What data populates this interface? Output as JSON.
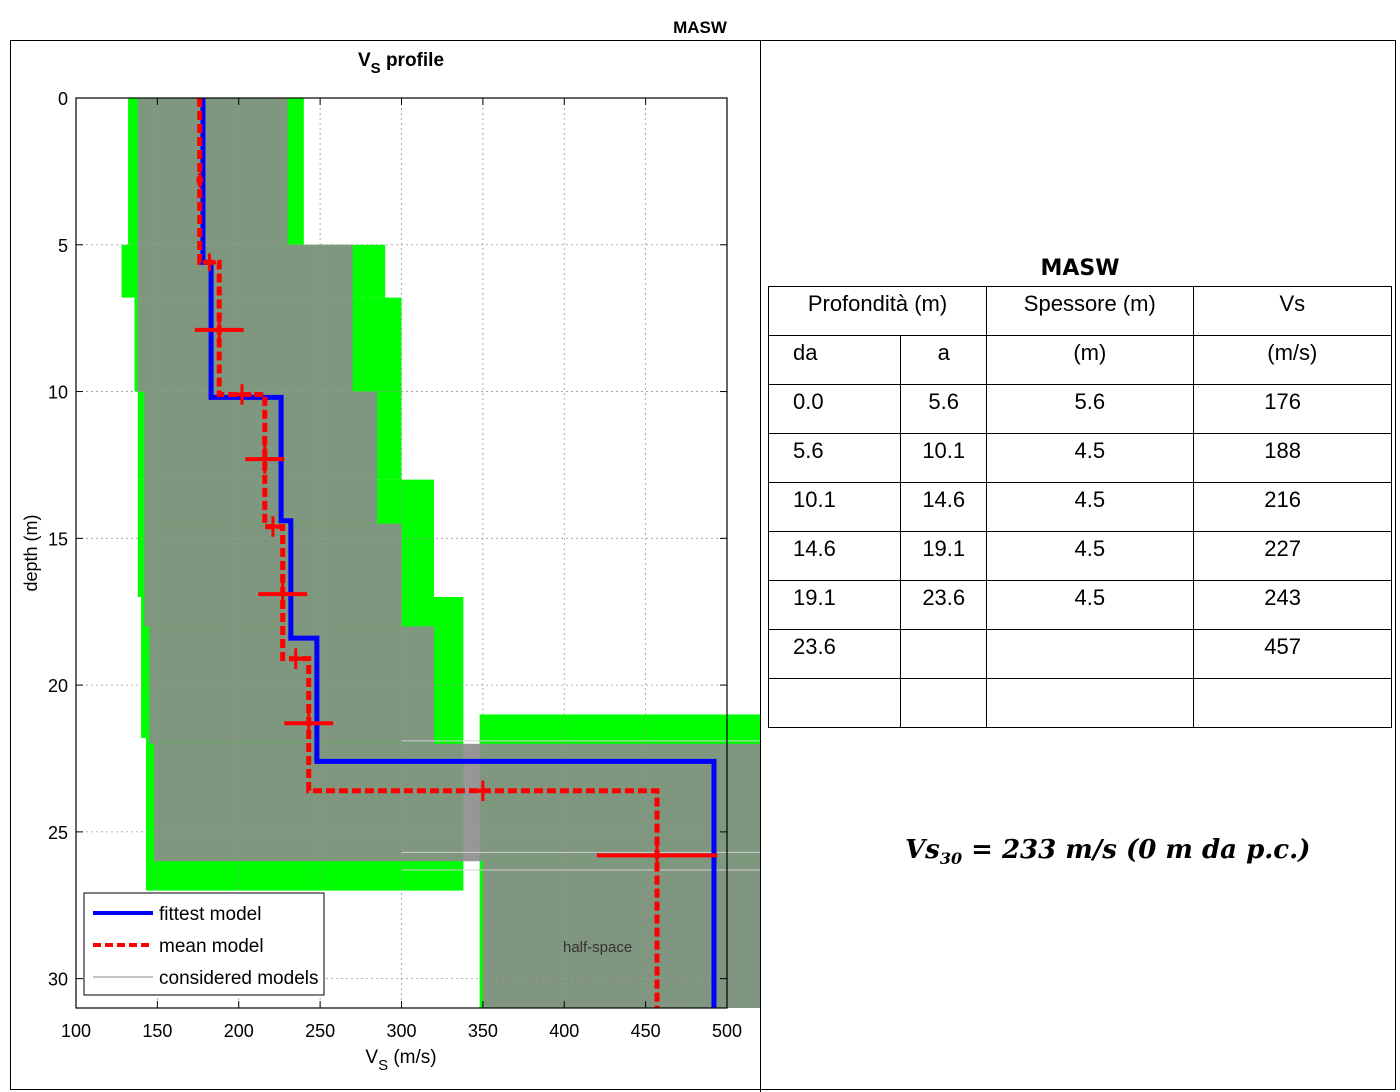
{
  "page": {
    "title": "MASW"
  },
  "chart_data": {
    "type": "line",
    "title": "V",
    "title_sub": "S",
    "title_rest": " profile",
    "xlabel": "V",
    "xlabel_sub": "S",
    "xlabel_rest": " (m/s)",
    "ylabel": "depth (m)",
    "xlim": [
      100,
      500
    ],
    "ylim": [
      0,
      31
    ],
    "y_inverted": true,
    "grid": true,
    "x_ticks": [
      "100",
      "150",
      "200",
      "250",
      "300",
      "350",
      "400",
      "450",
      "500"
    ],
    "y_ticks": [
      "0",
      "5",
      "10",
      "15",
      "20",
      "25",
      "30"
    ],
    "series": [
      {
        "name": "fittest model",
        "color": "#0000ff",
        "style": "solid",
        "x": [
          178,
          178,
          183,
          183,
          226,
          226,
          232,
          232,
          248,
          248,
          492,
          492
        ],
        "y": [
          0,
          5.6,
          5.6,
          10.2,
          10.2,
          14.4,
          14.4,
          18.4,
          18.4,
          22.6,
          22.6,
          31
        ]
      },
      {
        "name": "mean model",
        "color": "#ff0000",
        "style": "dashed",
        "x": [
          176,
          176,
          188,
          188,
          216,
          216,
          227,
          227,
          243,
          243,
          457,
          457
        ],
        "y": [
          0,
          5.6,
          5.6,
          10.1,
          10.1,
          14.6,
          14.6,
          19.1,
          19.1,
          23.6,
          23.6,
          31
        ]
      },
      {
        "name": "considered models",
        "color": "#b0b0b0",
        "style": "solid"
      }
    ],
    "error_bars": [
      {
        "x": 176,
        "y": 2.8,
        "dx": 2,
        "dy": 0.25
      },
      {
        "x": 182,
        "y": 5.6,
        "dx": 4,
        "dy": 0.3
      },
      {
        "x": 188,
        "y": 7.9,
        "dx": 15,
        "dy": 0.45
      },
      {
        "x": 202,
        "y": 10.1,
        "dx": 6,
        "dy": 0.35
      },
      {
        "x": 216,
        "y": 12.3,
        "dx": 12,
        "dy": 0.5
      },
      {
        "x": 221,
        "y": 14.6,
        "dx": 4,
        "dy": 0.35
      },
      {
        "x": 227,
        "y": 16.9,
        "dx": 15,
        "dy": 0.45
      },
      {
        "x": 235,
        "y": 19.1,
        "dx": 4,
        "dy": 0.35
      },
      {
        "x": 243,
        "y": 21.3,
        "dx": 15,
        "dy": 0.5
      },
      {
        "x": 350,
        "y": 23.6,
        "dx": 3,
        "dy": 0.35
      },
      {
        "x": 457,
        "y": 25.8,
        "dx": 37,
        "dy": 0.35
      }
    ],
    "annotation": "half-space"
  },
  "table": {
    "title": "MASW",
    "header1": [
      "Profondità (m)",
      "Spessore (m)",
      "Vs"
    ],
    "header2": [
      "da",
      "a",
      "(m)",
      "(m/s)"
    ],
    "rows": [
      [
        "0.0",
        "5.6",
        "5.6",
        "176"
      ],
      [
        "5.6",
        "10.1",
        "4.5",
        "188"
      ],
      [
        "10.1",
        "14.6",
        "4.5",
        "216"
      ],
      [
        "14.6",
        "19.1",
        "4.5",
        "227"
      ],
      [
        "19.1",
        "23.6",
        "4.5",
        "243"
      ],
      [
        "23.6",
        "",
        "",
        "457"
      ],
      [
        "",
        "",
        "",
        ""
      ]
    ]
  },
  "vs30": {
    "label": "Vs",
    "sub": "30",
    "value": " = 233 m/s (0 m da p.c.)"
  }
}
